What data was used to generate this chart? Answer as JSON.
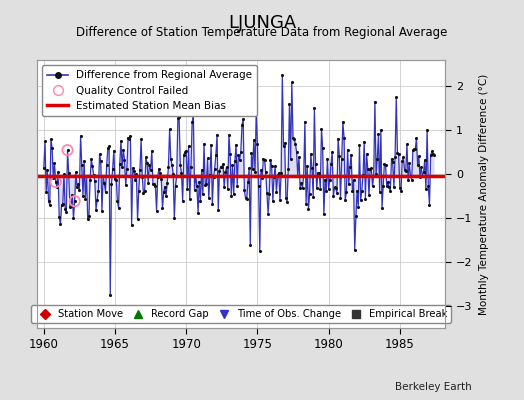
{
  "title": "LJUNGA",
  "subtitle": "Difference of Station Temperature Data from Regional Average",
  "ylabel_right": "Monthly Temperature Anomaly Difference (°C)",
  "credit": "Berkeley Earth",
  "xlim": [
    1959.5,
    1988.2
  ],
  "ylim": [
    -3.5,
    2.6
  ],
  "yticks": [
    -3,
    -2,
    -1,
    0,
    1,
    2
  ],
  "xticks": [
    1960,
    1965,
    1970,
    1975,
    1980,
    1985
  ],
  "bias_value": -0.05,
  "background_color": "#e0e0e0",
  "plot_bg_color": "#ffffff",
  "line_color": "#3333bb",
  "fill_color": "#aaaadd",
  "dot_color": "#111111",
  "bias_color": "#dd0000",
  "qc_fail_color": "#ff88aa",
  "seed": 42,
  "n_points": 330,
  "start_year": 1960.0,
  "time_step": 0.08333
}
